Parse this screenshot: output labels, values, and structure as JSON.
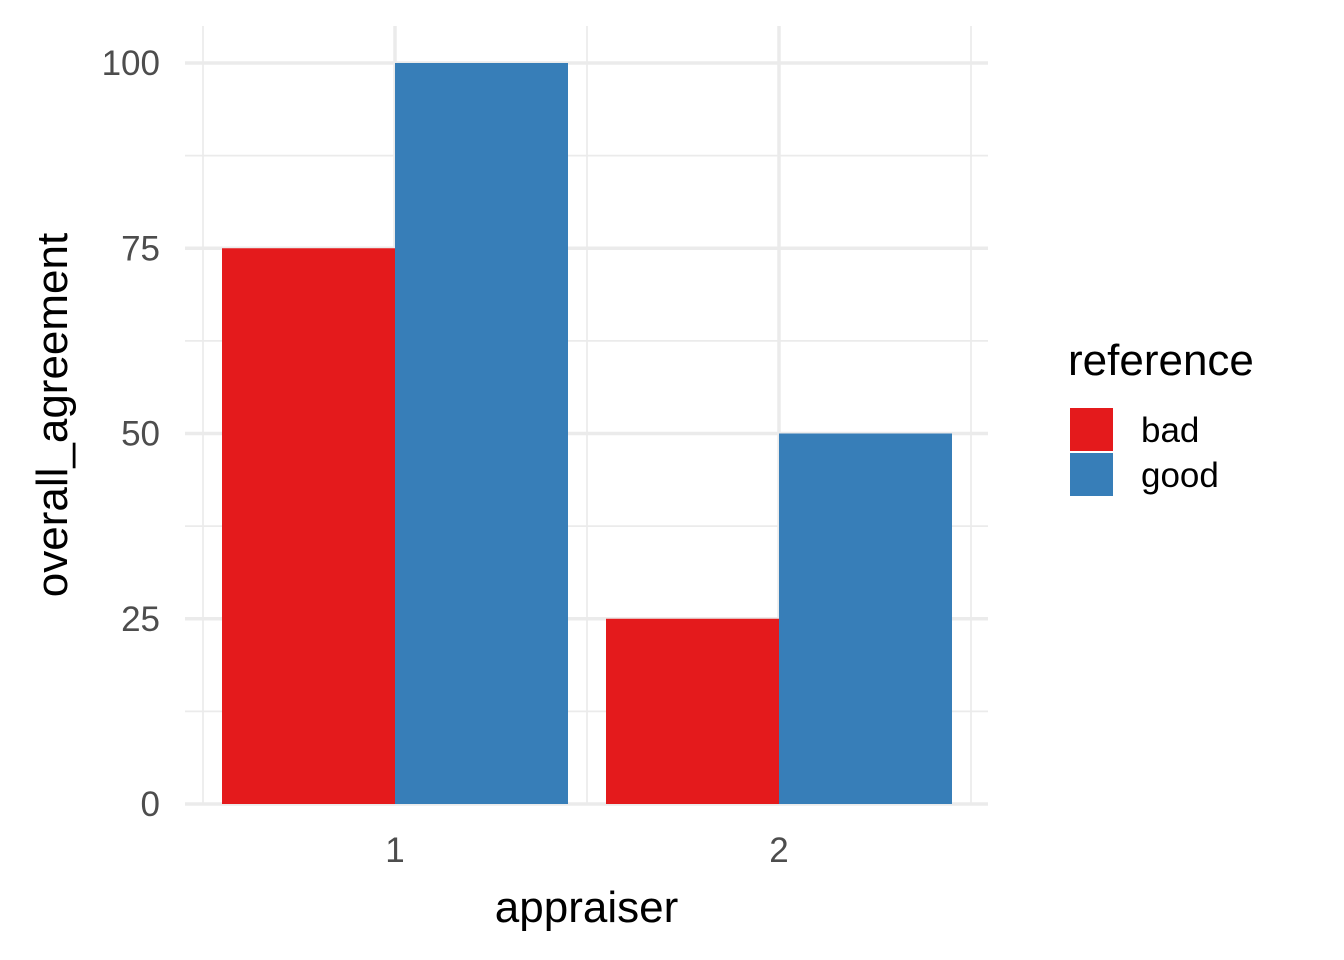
{
  "chart_data": {
    "type": "bar",
    "title": "",
    "xlabel": "appraiser",
    "ylabel": "overall_agreement",
    "categories": [
      "1",
      "2"
    ],
    "series": [
      {
        "name": "bad",
        "color": "#e41a1c",
        "values": [
          75,
          25
        ]
      },
      {
        "name": "good",
        "color": "#377eb8",
        "values": [
          100,
          50
        ]
      }
    ],
    "ylim": [
      0,
      100
    ],
    "y_ticks": [
      0,
      25,
      50,
      75,
      100
    ],
    "y_tick_labels": [
      "0",
      "25",
      "50",
      "75",
      "100"
    ],
    "grid": true,
    "legend": {
      "title": "reference",
      "position": "right"
    }
  }
}
